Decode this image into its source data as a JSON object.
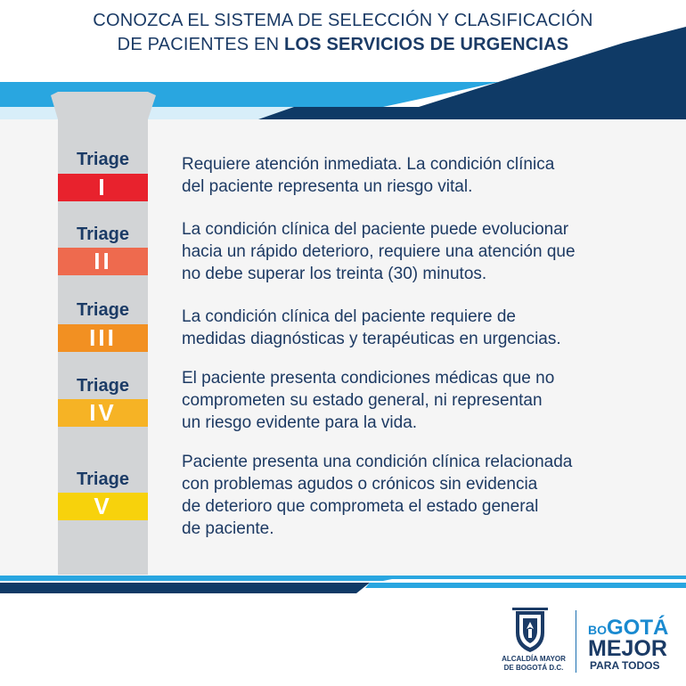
{
  "header": {
    "title_line1": "CONOZCA EL SISTEMA DE SELECCIÓN Y CLASIFICACIÓN",
    "title_line2_regular": "DE PACIENTES EN ",
    "title_line2_bold": "LOS SERVICIOS DE URGENCIAS"
  },
  "triage": [
    {
      "label": "Triage",
      "level": "I",
      "color": "#e8222d",
      "lines": [
        "Requiere atención inmediata. La condición clínica",
        "del paciente representa un riesgo vital."
      ]
    },
    {
      "label": "Triage",
      "level": "II",
      "color": "#ee6a4e",
      "lines": [
        "La condición clínica del paciente puede evolucionar",
        "hacia un rápido deterioro, requiere una atención que",
        "no debe superar los treinta (30) minutos."
      ]
    },
    {
      "label": "Triage",
      "level": "III",
      "color": "#f29022",
      "lines": [
        "La condición clínica del paciente requiere de",
        "medidas diagnósticas y terapéuticas en urgencias."
      ]
    },
    {
      "label": "Triage",
      "level": "IV",
      "color": "#f6b325",
      "lines": [
        "El paciente presenta condiciones médicas que no",
        "comprometen su estado general, ni representan",
        "un riesgo evidente para la vida."
      ]
    },
    {
      "label": "Triage",
      "level": "V",
      "color": "#f7d20c",
      "lines": [
        "Paciente presenta una condición clínica relacionada",
        "con problemas agudos o crónicos sin evidencia",
        "de deterioro que comprometa el estado general",
        "de paciente."
      ]
    }
  ],
  "footer": {
    "alcaldia_line1": "ALCALDÍA MAYOR",
    "alcaldia_line2": "DE BOGOTÁ D.C.",
    "bogota_small": "BO",
    "bogota_main": "GOTÁ",
    "mejor": "MEJOR",
    "para_todos": "PARA TODOS"
  },
  "colors": {
    "navy": "#1b3b66",
    "cyan": "#1a8ad0",
    "panel": "#f5f5f5",
    "column": "#d2d4d6"
  }
}
